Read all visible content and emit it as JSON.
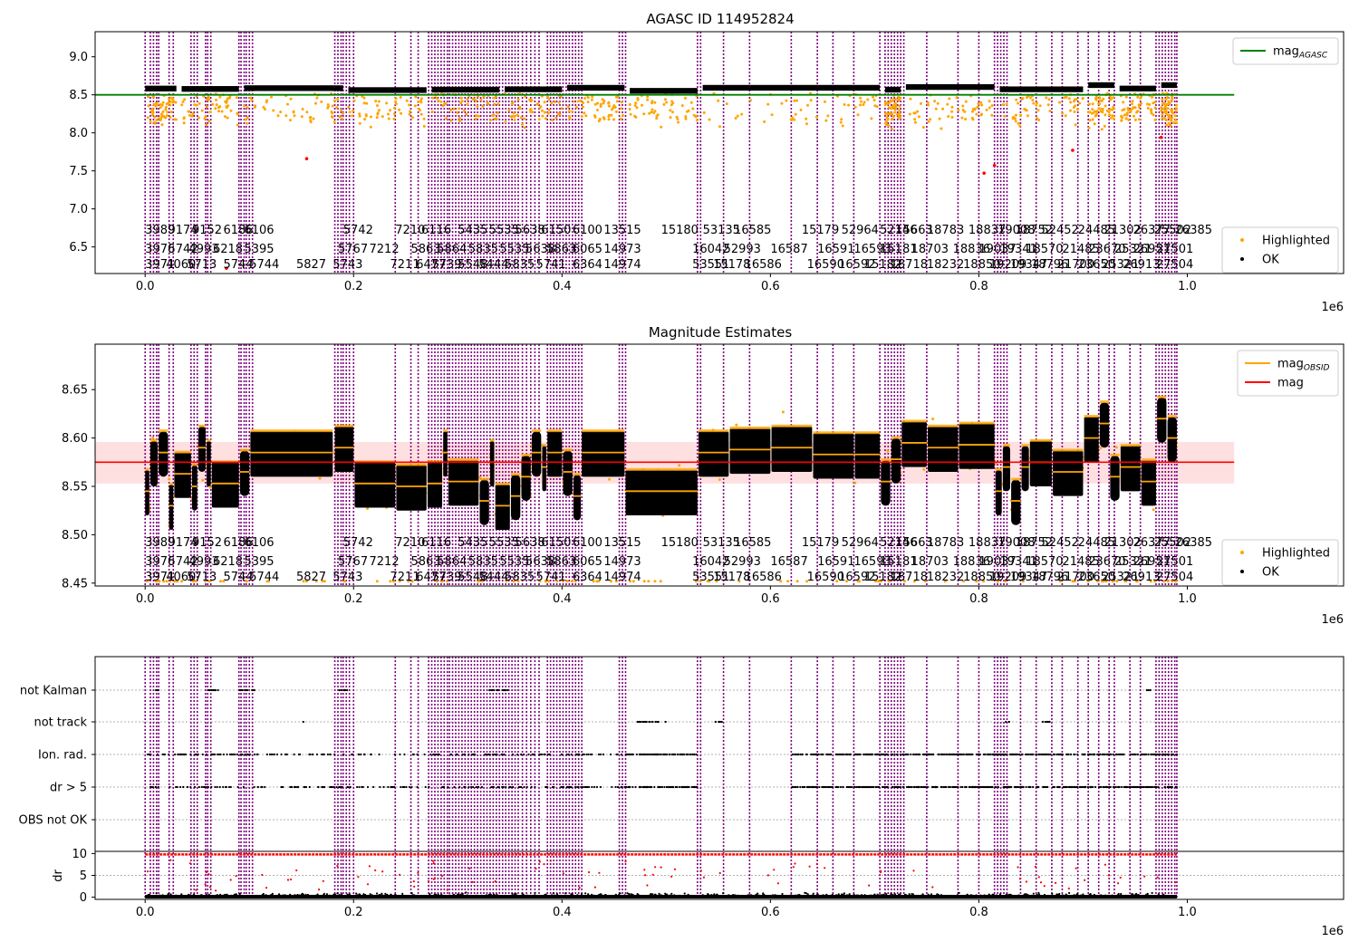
{
  "colors": {
    "ok": "#000000",
    "highlighted": "#ffa500",
    "mag_agasc": "#008000",
    "mag_obsid": "#ffa500",
    "mag": "#ff0000",
    "obs_marker": "#800080",
    "red_points": "#ff0000",
    "band": "#ffd6d6"
  },
  "chart_data": [
    {
      "type": "scatter",
      "title": "AGASC ID 114952824",
      "xlabel": "",
      "ylabel": "",
      "x_offset_label": "1e6",
      "xlim": [
        -48000,
        1150000
      ],
      "ylim": [
        6.15,
        9.33
      ],
      "xticks": [
        "0.0",
        "0.2",
        "0.4",
        "0.6",
        "0.8",
        "1.0"
      ],
      "xtick_values": [
        0,
        200000,
        400000,
        600000,
        800000,
        1000000
      ],
      "yticks": [
        "6.5",
        "7.0",
        "7.5",
        "8.0",
        "8.5",
        "9.0"
      ],
      "ytick_values": [
        6.5,
        7.0,
        7.5,
        8.0,
        8.5,
        9.0
      ],
      "legend_top": {
        "position": "top-right",
        "entries": [
          {
            "label": "mag",
            "sub": "AGASC"
          }
        ]
      },
      "legend_bottom": {
        "position": "bottom-right",
        "entries": [
          "Highlighted",
          "OK"
        ]
      },
      "mag_agasc": 8.5,
      "segments": [
        [
          0,
          30000,
          8.575
        ],
        [
          35000,
          90000,
          8.57
        ],
        [
          95000,
          190000,
          8.58
        ],
        [
          195000,
          270000,
          8.555
        ],
        [
          275000,
          340000,
          8.56
        ],
        [
          345000,
          400000,
          8.565
        ],
        [
          405000,
          460000,
          8.585
        ],
        [
          465000,
          530000,
          8.545
        ],
        [
          535000,
          705000,
          8.585
        ],
        [
          710000,
          725000,
          8.56
        ],
        [
          730000,
          815000,
          8.595
        ],
        [
          820000,
          900000,
          8.565
        ],
        [
          905000,
          930000,
          8.62
        ],
        [
          935000,
          970000,
          8.575
        ],
        [
          975000,
          990000,
          8.62
        ]
      ],
      "red_outliers": [
        [
          155000,
          7.66
        ],
        [
          78000,
          6.22
        ],
        [
          805000,
          7.47
        ],
        [
          815000,
          7.57
        ],
        [
          890000,
          7.77
        ],
        [
          975000,
          7.94
        ]
      ]
    },
    {
      "type": "scatter",
      "title": "Magnitude Estimates",
      "xlabel": "",
      "ylabel": "",
      "x_offset_label": "1e6",
      "xlim": [
        -48000,
        1150000
      ],
      "ylim": [
        8.447,
        8.697
      ],
      "xticks": [
        "0.0",
        "0.2",
        "0.4",
        "0.6",
        "0.8",
        "1.0"
      ],
      "xtick_values": [
        0,
        200000,
        400000,
        600000,
        800000,
        1000000
      ],
      "yticks": [
        "8.45",
        "8.50",
        "8.55",
        "8.60",
        "8.65"
      ],
      "ytick_values": [
        8.45,
        8.5,
        8.55,
        8.6,
        8.65
      ],
      "legend_top": {
        "position": "top-right",
        "entries": [
          {
            "label": "mag",
            "sub": "OBSID"
          },
          {
            "label": "mag",
            "sub": ""
          }
        ]
      },
      "legend_bottom": {
        "position": "bottom-right",
        "entries": [
          "Highlighted",
          "OK"
        ]
      },
      "mag": 8.575,
      "mag_band": [
        8.553,
        8.596
      ],
      "segments": [
        [
          0,
          4000,
          8.545
        ],
        [
          5000,
          12000,
          8.575
        ],
        [
          13000,
          22000,
          8.585
        ],
        [
          23000,
          27000,
          8.53
        ],
        [
          28000,
          44000,
          8.563
        ],
        [
          45000,
          50000,
          8.55
        ],
        [
          51000,
          58000,
          8.59
        ],
        [
          59000,
          63000,
          8.575
        ],
        [
          64000,
          90000,
          8.553
        ],
        [
          91000,
          100000,
          8.565
        ],
        [
          101000,
          180000,
          8.585
        ],
        [
          182000,
          200000,
          8.59
        ],
        [
          201000,
          240000,
          8.553
        ],
        [
          241000,
          270000,
          8.55
        ],
        [
          271000,
          285000,
          8.553
        ],
        [
          286000,
          290000,
          8.585
        ],
        [
          291000,
          320000,
          8.555
        ],
        [
          321000,
          330000,
          8.535
        ],
        [
          331000,
          335000,
          8.575
        ],
        [
          336000,
          350000,
          8.53
        ],
        [
          351000,
          360000,
          8.54
        ],
        [
          361000,
          370000,
          8.56
        ],
        [
          371000,
          380000,
          8.585
        ],
        [
          381000,
          385000,
          8.57
        ],
        [
          386000,
          400000,
          8.585
        ],
        [
          401000,
          410000,
          8.565
        ],
        [
          411000,
          418000,
          8.54
        ],
        [
          419000,
          460000,
          8.585
        ],
        [
          461000,
          530000,
          8.545
        ],
        [
          531000,
          560000,
          8.585
        ],
        [
          561000,
          600000,
          8.588
        ],
        [
          601000,
          640000,
          8.59
        ],
        [
          641000,
          680000,
          8.583
        ],
        [
          681000,
          705000,
          8.583
        ],
        [
          706000,
          715000,
          8.555
        ],
        [
          716000,
          725000,
          8.578
        ],
        [
          726000,
          750000,
          8.595
        ],
        [
          751000,
          780000,
          8.59
        ],
        [
          781000,
          815000,
          8.593
        ],
        [
          816000,
          822000,
          8.545
        ],
        [
          823000,
          830000,
          8.57
        ],
        [
          831000,
          840000,
          8.535
        ],
        [
          841000,
          848000,
          8.57
        ],
        [
          849000,
          870000,
          8.575
        ],
        [
          871000,
          900000,
          8.565
        ],
        [
          901000,
          915000,
          8.6
        ],
        [
          916000,
          925000,
          8.615
        ],
        [
          926000,
          935000,
          8.56
        ],
        [
          936000,
          955000,
          8.57
        ],
        [
          956000,
          970000,
          8.555
        ],
        [
          971000,
          980000,
          8.62
        ],
        [
          981000,
          990000,
          8.6
        ]
      ]
    },
    {
      "type": "scatter",
      "title": "",
      "xlabel": "",
      "x_offset_label": "1e6",
      "xlim": [
        -48000,
        1150000
      ],
      "xticks": [
        "0.0",
        "0.2",
        "0.4",
        "0.6",
        "0.8",
        "1.0"
      ],
      "xtick_values": [
        0,
        200000,
        400000,
        600000,
        800000,
        1000000
      ],
      "flag_categories": [
        "not Kalman",
        "not track",
        "Ion. rad.",
        "dr > 5",
        "OBS not OK"
      ],
      "dr_ylabel": "dr",
      "dr_yticks": [
        "0",
        "5",
        "10"
      ],
      "dr_ytick_values": [
        0,
        5,
        10
      ],
      "dr_ylim": [
        -0.5,
        10.5
      ],
      "dr_threshold": 10
    }
  ],
  "obs_lines_x": [
    0,
    5000,
    8000,
    11000,
    13000,
    23000,
    27000,
    44000,
    47000,
    50000,
    58000,
    60000,
    63000,
    90000,
    92000,
    95000,
    97000,
    100000,
    103000,
    182000,
    185000,
    188000,
    190000,
    193000,
    196000,
    200000,
    240000,
    255000,
    262000,
    272000,
    275000,
    278000,
    281000,
    284000,
    287000,
    290000,
    292000,
    295000,
    298000,
    301000,
    304000,
    307000,
    310000,
    313000,
    316000,
    319000,
    322000,
    325000,
    328000,
    331000,
    334000,
    337000,
    340000,
    343000,
    346000,
    349000,
    352000,
    355000,
    358000,
    362000,
    366000,
    370000,
    374000,
    378000,
    386000,
    389000,
    392000,
    395000,
    398000,
    401000,
    404000,
    407000,
    410000,
    413000,
    416000,
    419000,
    455000,
    458000,
    461000,
    530000,
    533000,
    555000,
    580000,
    620000,
    645000,
    660000,
    680000,
    705000,
    710000,
    713000,
    716000,
    719000,
    722000,
    725000,
    728000,
    750000,
    780000,
    800000,
    815000,
    818000,
    821000,
    824000,
    827000,
    840000,
    855000,
    870000,
    880000,
    895000,
    905000,
    915000,
    925000,
    930000,
    945000,
    955000,
    970000,
    973000,
    976000,
    979000,
    982000,
    985000,
    988000,
    990000
  ],
  "obsid_labels": [
    {
      "row": 0,
      "items": [
        [
          "3989",
          0
        ],
        [
          "9174",
          22000
        ],
        [
          "9152",
          45000
        ],
        [
          "6186",
          75000
        ],
        [
          "6106",
          95000
        ],
        [
          "5742",
          190000
        ],
        [
          "7210",
          240000
        ],
        [
          "6116",
          265000
        ],
        [
          "5435",
          300000
        ],
        [
          "5535",
          330000
        ],
        [
          "5638",
          355000
        ],
        [
          "6150",
          380000
        ],
        [
          "6100",
          410000
        ],
        [
          "13515",
          440000
        ],
        [
          "15180",
          495000
        ],
        [
          "53135",
          535000
        ],
        [
          "16585",
          565000
        ],
        [
          "15179",
          630000
        ],
        [
          "52964",
          668000
        ],
        [
          "52146",
          705000
        ],
        [
          "15663",
          720000
        ],
        [
          "18783",
          750000
        ],
        [
          "18837",
          790000
        ],
        [
          "19008",
          818000
        ],
        [
          "18752",
          835000
        ],
        [
          "52452",
          860000
        ],
        [
          "24485",
          895000
        ],
        [
          "21302",
          920000
        ],
        [
          "26377",
          948000
        ],
        [
          "25502",
          968000
        ],
        [
          "26385",
          988000
        ]
      ]
    },
    {
      "row": 1,
      "items": [
        [
          "3976",
          0
        ],
        [
          "5742",
          22000
        ],
        [
          "4993",
          42000
        ],
        [
          "6218",
          65000
        ],
        [
          "5395",
          95000
        ],
        [
          "5767",
          185000
        ],
        [
          "7212",
          215000
        ],
        [
          "5863",
          255000
        ],
        [
          "5864",
          280000
        ],
        [
          "5835",
          310000
        ],
        [
          "5535",
          340000
        ],
        [
          "5638",
          365000
        ],
        [
          "5863",
          385000
        ],
        [
          "6065",
          410000
        ],
        [
          "14973",
          440000
        ],
        [
          "16042",
          525000
        ],
        [
          "52993",
          555000
        ],
        [
          "16587",
          600000
        ],
        [
          "16591",
          645000
        ],
        [
          "16593",
          680000
        ],
        [
          "15181",
          705000
        ],
        [
          "18703",
          735000
        ],
        [
          "18836",
          775000
        ],
        [
          "19037",
          800000
        ],
        [
          "19341",
          820000
        ],
        [
          "18570",
          845000
        ],
        [
          "21485",
          880000
        ],
        [
          "23670",
          905000
        ],
        [
          "25321",
          930000
        ],
        [
          "26951",
          948000
        ],
        [
          "27501",
          970000
        ]
      ]
    },
    {
      "row": 2,
      "items": [
        [
          "3971",
          0
        ],
        [
          "4060",
          20000
        ],
        [
          "5713",
          40000
        ],
        [
          "5744",
          75000
        ],
        [
          "5744",
          100000
        ],
        [
          "5827",
          145000
        ],
        [
          "5743",
          180000
        ],
        [
          "7211",
          235000
        ],
        [
          "6477",
          260000
        ],
        [
          "5739",
          275000
        ],
        [
          "5548",
          300000
        ],
        [
          "5444",
          320000
        ],
        [
          "5835",
          345000
        ],
        [
          "5741",
          375000
        ],
        [
          "6364",
          410000
        ],
        [
          "14974",
          440000
        ],
        [
          "53551",
          525000
        ],
        [
          "15178",
          545000
        ],
        [
          "16586",
          575000
        ],
        [
          "16590",
          635000
        ],
        [
          "16592",
          665000
        ],
        [
          "15182",
          690000
        ],
        [
          "18718",
          715000
        ],
        [
          "18232",
          750000
        ],
        [
          "18850",
          785000
        ],
        [
          "19209",
          810000
        ],
        [
          "19347",
          830000
        ],
        [
          "18796",
          850000
        ],
        [
          "21700",
          875000
        ],
        [
          "23650",
          895000
        ],
        [
          "25321",
          918000
        ],
        [
          "26913",
          938000
        ],
        [
          "27504",
          970000
        ]
      ]
    }
  ]
}
